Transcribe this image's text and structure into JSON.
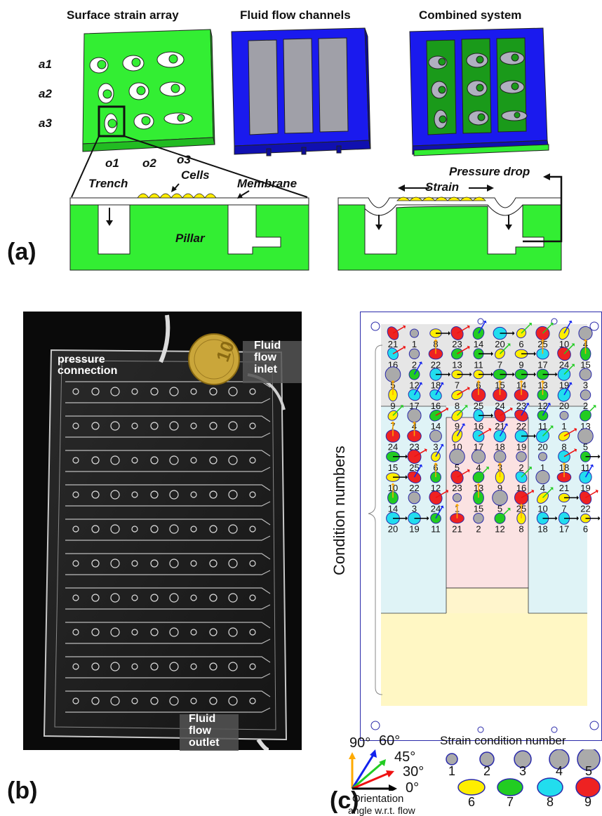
{
  "panel_a": {
    "label": "(a)",
    "titles": [
      "Surface strain array",
      "Fluid flow channels",
      "Combined system"
    ],
    "row_labels": [
      "a1",
      "a2",
      "a3"
    ],
    "col_labels": [
      "o1",
      "o2",
      "o3"
    ],
    "cross_section": {
      "trench": "Trench",
      "cells": "Cells",
      "membrane": "Membrane",
      "pillar": "Pillar",
      "strain": "Strain",
      "pressure_drop": "Pressure drop"
    },
    "colors": {
      "green": "#33ee33",
      "blue": "#1a1aee",
      "gray": "#a0a0a8",
      "yellow": "#ffee00"
    }
  },
  "panel_b": {
    "label": "(b)",
    "pressure_connection": "pressure\nconnection",
    "inlet": "Fluid\nflow\ninlet",
    "outlet": "Fluid\nflow\noutlet",
    "coin_text": "10"
  },
  "panel_c": {
    "label": "(c)",
    "y_label": "Condition numbers",
    "grid_numbers": [
      [
        21,
        1,
        8,
        23,
        14,
        20,
        6,
        25,
        10,
        4
      ],
      [
        16,
        2,
        22,
        13,
        11,
        7,
        9,
        17,
        24,
        15
      ],
      [
        5,
        12,
        18,
        7,
        6,
        15,
        14,
        13,
        19,
        3
      ],
      [
        9,
        17,
        16,
        8,
        25,
        24,
        23,
        12,
        20,
        2
      ],
      [
        7,
        4,
        14,
        9,
        16,
        21,
        22,
        11,
        1,
        13
      ],
      [
        24,
        23,
        3,
        10,
        17,
        18,
        19,
        20,
        8,
        5
      ],
      [
        15,
        25,
        6,
        5,
        4,
        3,
        2,
        1,
        18,
        11
      ],
      [
        10,
        22,
        12,
        23,
        13,
        9,
        16,
        4,
        21,
        19
      ],
      [
        14,
        3,
        24,
        1,
        15,
        5,
        25,
        10,
        7,
        22
      ],
      [
        20,
        19,
        11,
        21,
        2,
        12,
        8,
        18,
        17,
        6
      ]
    ],
    "orientation_legend": {
      "angles": [
        "90°",
        "60°",
        "45°",
        "30°",
        "0°"
      ],
      "caption_line1": "Orientation",
      "caption_line2": "angle w.r.t. flow"
    },
    "strain_legend": {
      "title": "Strain condition number",
      "numbers": [
        "1",
        "2",
        "3",
        "4",
        "5",
        "6",
        "7",
        "8",
        "9"
      ]
    },
    "fill_colors": {
      "6": "#ffee00",
      "7": "#22cc22",
      "8": "#22ddee",
      "9": "#ee2222",
      "gray": "#aaaaaa"
    },
    "arrow_colors": {
      "0": "#000000",
      "30": "#ee1111",
      "45": "#22cc22",
      "60": "#1122ee",
      "90": "#ffaa00"
    }
  }
}
